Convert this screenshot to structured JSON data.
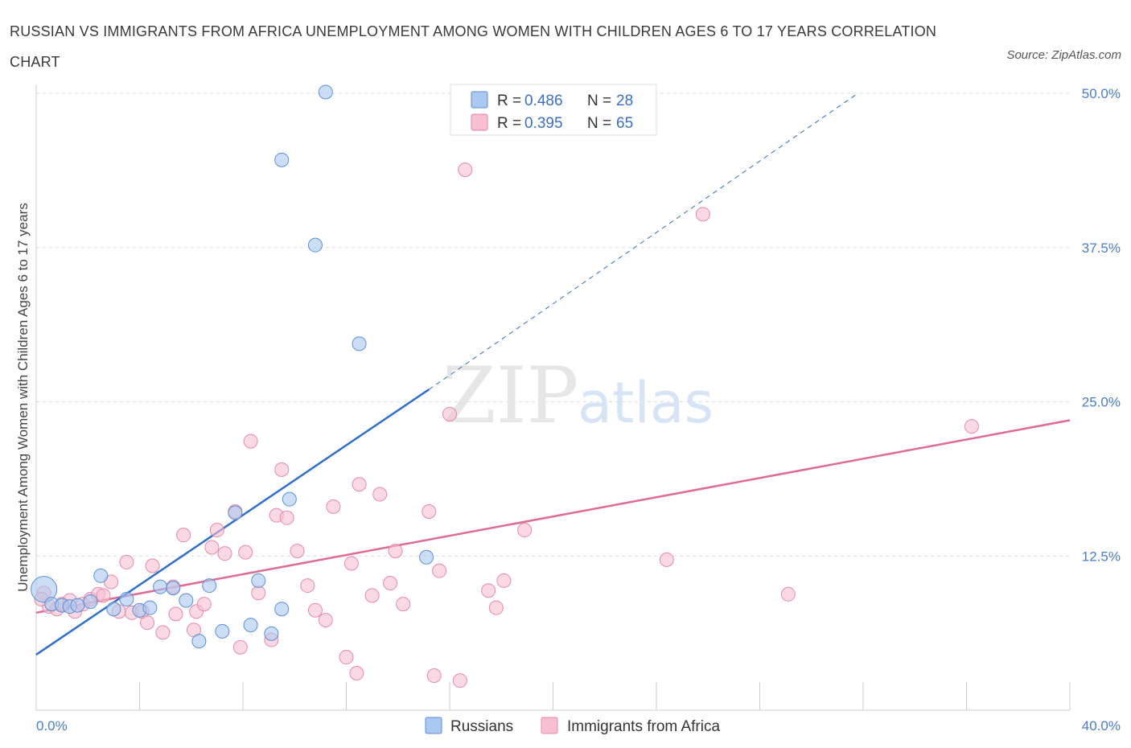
{
  "header": {
    "title": "RUSSIAN VS IMMIGRANTS FROM AFRICA UNEMPLOYMENT AMONG WOMEN WITH CHILDREN AGES 6 TO 17 YEARS CORRELATION CHART",
    "source": "Source: ZipAtlas.com"
  },
  "watermark": {
    "zip": "ZIP",
    "atlas": "atlas"
  },
  "colors": {
    "russians_fill": "#aac8f0",
    "russians_stroke": "#5b8fd6",
    "russians_line": "#2f6fc9",
    "africa_fill": "#f7bfd0",
    "africa_stroke": "#e58aa8",
    "africa_line": "#e06a96",
    "grid": "#dddddd",
    "tick_text": "#4a7cc7"
  },
  "legend": {
    "rows": [
      {
        "r_label": "R = ",
        "r_value": "0.486",
        "n_label": "N = ",
        "n_value": "28"
      },
      {
        "r_label": "R = ",
        "r_value": "0.395",
        "n_label": "N = ",
        "n_value": "65"
      }
    ]
  },
  "bottom_legend": [
    "Russians",
    "Immigrants from Africa"
  ],
  "chart_data": {
    "type": "scatter",
    "title": "RUSSIAN VS IMMIGRANTS FROM AFRICA UNEMPLOYMENT AMONG WOMEN WITH CHILDREN AGES 6 TO 17 YEARS CORRELATION CHART",
    "xlabel": "",
    "ylabel": "Unemployment Among Women with Children Ages 6 to 17 years",
    "xlim": [
      0,
      40
    ],
    "ylim": [
      0,
      50
    ],
    "x_tick_labels": [
      "0.0%",
      "40.0%"
    ],
    "y_ticks": [
      12.5,
      25,
      37.5,
      50
    ],
    "y_tick_labels": [
      "12.5%",
      "25.0%",
      "37.5%",
      "50.0%"
    ],
    "grid": true,
    "legend_position": "top-center",
    "series": [
      {
        "name": "Russians",
        "R": 0.486,
        "N": 28,
        "trend": {
          "x": [
            0,
            15.2
          ],
          "y": [
            4.5,
            26.0
          ],
          "dashed_to": [
            31.8,
            50.0
          ]
        },
        "points": [
          {
            "x": 0.3,
            "y": 9.8
          },
          {
            "x": 0.6,
            "y": 8.6
          },
          {
            "x": 1.0,
            "y": 8.5
          },
          {
            "x": 1.3,
            "y": 8.4
          },
          {
            "x": 1.6,
            "y": 8.5
          },
          {
            "x": 2.1,
            "y": 8.8
          },
          {
            "x": 2.5,
            "y": 10.9
          },
          {
            "x": 3.0,
            "y": 8.2
          },
          {
            "x": 3.5,
            "y": 9.0
          },
          {
            "x": 4.0,
            "y": 8.1
          },
          {
            "x": 4.4,
            "y": 8.3
          },
          {
            "x": 4.8,
            "y": 10.0
          },
          {
            "x": 5.3,
            "y": 9.9
          },
          {
            "x": 5.8,
            "y": 8.9
          },
          {
            "x": 6.3,
            "y": 5.6
          },
          {
            "x": 6.7,
            "y": 10.1
          },
          {
            "x": 7.2,
            "y": 6.4
          },
          {
            "x": 7.7,
            "y": 16.0
          },
          {
            "x": 8.3,
            "y": 6.9
          },
          {
            "x": 8.6,
            "y": 10.5
          },
          {
            "x": 9.1,
            "y": 6.2
          },
          {
            "x": 9.5,
            "y": 8.2
          },
          {
            "x": 9.5,
            "y": 44.6
          },
          {
            "x": 9.8,
            "y": 17.1
          },
          {
            "x": 10.8,
            "y": 37.7
          },
          {
            "x": 11.2,
            "y": 50.1
          },
          {
            "x": 12.5,
            "y": 29.7
          },
          {
            "x": 15.1,
            "y": 12.4
          }
        ]
      },
      {
        "name": "Immigrants from Africa",
        "R": 0.395,
        "N": 65,
        "trend": {
          "x": [
            0,
            40
          ],
          "y": [
            7.9,
            23.5
          ]
        },
        "points": [
          {
            "x": 0.3,
            "y": 9.5
          },
          {
            "x": 0.5,
            "y": 8.4
          },
          {
            "x": 0.8,
            "y": 8.2
          },
          {
            "x": 1.0,
            "y": 8.6
          },
          {
            "x": 1.3,
            "y": 8.9
          },
          {
            "x": 1.5,
            "y": 8.0
          },
          {
            "x": 1.8,
            "y": 8.6
          },
          {
            "x": 2.1,
            "y": 9.0
          },
          {
            "x": 2.4,
            "y": 9.4
          },
          {
            "x": 2.6,
            "y": 9.3
          },
          {
            "x": 2.9,
            "y": 10.4
          },
          {
            "x": 3.2,
            "y": 8.0
          },
          {
            "x": 3.5,
            "y": 12.0
          },
          {
            "x": 3.7,
            "y": 7.9
          },
          {
            "x": 4.1,
            "y": 8.0
          },
          {
            "x": 4.3,
            "y": 7.1
          },
          {
            "x": 4.5,
            "y": 11.7
          },
          {
            "x": 4.9,
            "y": 6.3
          },
          {
            "x": 5.3,
            "y": 10.0
          },
          {
            "x": 5.4,
            "y": 7.8
          },
          {
            "x": 5.7,
            "y": 14.2
          },
          {
            "x": 6.1,
            "y": 6.5
          },
          {
            "x": 6.2,
            "y": 8.0
          },
          {
            "x": 6.5,
            "y": 8.6
          },
          {
            "x": 6.8,
            "y": 13.2
          },
          {
            "x": 7.0,
            "y": 14.6
          },
          {
            "x": 7.3,
            "y": 12.7
          },
          {
            "x": 7.7,
            "y": 16.1
          },
          {
            "x": 7.9,
            "y": 5.1
          },
          {
            "x": 8.1,
            "y": 12.8
          },
          {
            "x": 8.3,
            "y": 21.8
          },
          {
            "x": 8.6,
            "y": 9.5
          },
          {
            "x": 9.1,
            "y": 5.7
          },
          {
            "x": 9.3,
            "y": 15.8
          },
          {
            "x": 9.5,
            "y": 19.5
          },
          {
            "x": 9.7,
            "y": 15.6
          },
          {
            "x": 10.1,
            "y": 12.9
          },
          {
            "x": 10.5,
            "y": 10.1
          },
          {
            "x": 10.8,
            "y": 8.1
          },
          {
            "x": 11.2,
            "y": 7.3
          },
          {
            "x": 11.5,
            "y": 16.5
          },
          {
            "x": 12.0,
            "y": 4.3
          },
          {
            "x": 12.2,
            "y": 11.9
          },
          {
            "x": 12.4,
            "y": 3.0
          },
          {
            "x": 12.5,
            "y": 18.3
          },
          {
            "x": 13.0,
            "y": 9.3
          },
          {
            "x": 13.3,
            "y": 17.5
          },
          {
            "x": 13.7,
            "y": 10.3
          },
          {
            "x": 13.9,
            "y": 12.9
          },
          {
            "x": 14.2,
            "y": 8.6
          },
          {
            "x": 15.2,
            "y": 16.1
          },
          {
            "x": 15.4,
            "y": 2.8
          },
          {
            "x": 15.6,
            "y": 11.3
          },
          {
            "x": 16.0,
            "y": 24.0
          },
          {
            "x": 16.4,
            "y": 2.4
          },
          {
            "x": 16.6,
            "y": 43.8
          },
          {
            "x": 17.5,
            "y": 9.7
          },
          {
            "x": 17.8,
            "y": 8.3
          },
          {
            "x": 18.1,
            "y": 10.5
          },
          {
            "x": 18.9,
            "y": 14.6
          },
          {
            "x": 24.4,
            "y": 12.2
          },
          {
            "x": 25.8,
            "y": 40.2
          },
          {
            "x": 29.1,
            "y": 9.4
          },
          {
            "x": 36.2,
            "y": 23.0
          },
          {
            "x": 0.2,
            "y": 9.0
          }
        ]
      }
    ]
  }
}
